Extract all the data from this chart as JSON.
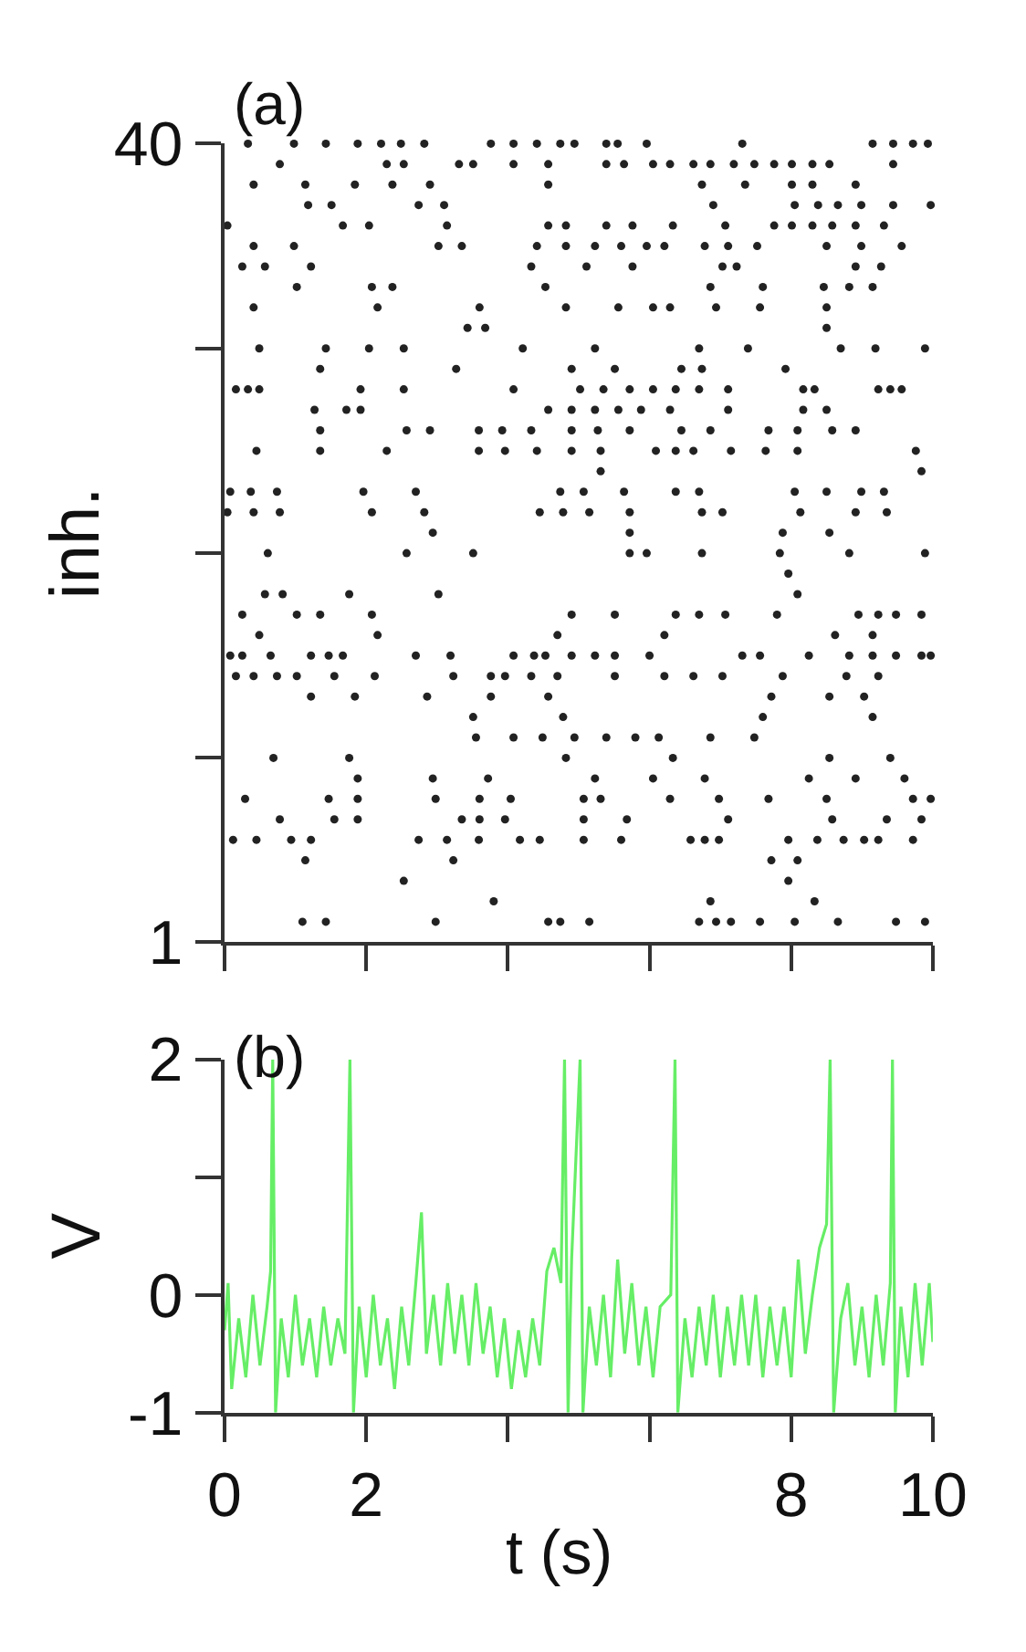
{
  "chart_data": [
    {
      "type": "scatter",
      "title": "(a)",
      "ylabel": "inh.",
      "marker": "circle",
      "tick_labels": "y",
      "xlim": [
        0,
        10
      ],
      "xticks": [
        0,
        2,
        4,
        6,
        8,
        10
      ],
      "ylim": [
        1,
        40
      ],
      "yticks": [
        40,
        {
          "value": 30,
          "label": null
        },
        {
          "value": 20,
          "label": null
        },
        {
          "value": 10,
          "label": null
        },
        1
      ],
      "series": [
        {
          "color": "#222222",
          "x": [
            0.33,
            0.98,
            1.43,
            1.88,
            2.21,
            2.49,
            2.82,
            3.76,
            4.08,
            4.41,
            4.74,
            4.94,
            5.39,
            5.55,
            5.96,
            7.31,
            9.15,
            9.44,
            9.72,
            9.93
          ],
          "values": [
            40,
            40,
            40,
            40,
            40,
            40,
            40,
            40,
            40,
            40,
            40,
            40,
            40,
            40,
            40,
            40,
            40,
            40,
            40,
            40
          ]
        },
        {
          "color": "#222222",
          "x": [
            0.78,
            2.29,
            2.53,
            3.31,
            3.51,
            4.08,
            4.57,
            5.39,
            5.64,
            6.05,
            6.29,
            6.62,
            6.86,
            7.19,
            7.48,
            7.76,
            8.01,
            8.3,
            8.54,
            9.44
          ],
          "values": [
            39,
            39,
            39,
            39,
            39,
            39,
            39,
            39,
            39,
            39,
            39,
            39,
            39,
            39,
            39,
            39,
            39,
            39,
            39,
            39
          ]
        },
        {
          "color": "#222222",
          "x": [
            0.41,
            1.14,
            1.84,
            2.37,
            2.9,
            4.57,
            6.74,
            7.35,
            8.01,
            8.3,
            8.91
          ],
          "values": [
            38,
            38,
            38,
            38,
            38,
            38,
            38,
            38,
            38,
            38,
            38
          ]
        },
        {
          "color": "#222222",
          "x": [
            1.18,
            1.51,
            2.74,
            3.1,
            6.9,
            8.05,
            8.38,
            8.66,
            8.99,
            9.44,
            9.97
          ],
          "values": [
            37,
            37,
            37,
            37,
            37,
            37,
            37,
            37,
            37,
            37,
            37
          ]
        },
        {
          "color": "#222222",
          "x": [
            0.04,
            1.67,
            2.04,
            3.14,
            4.57,
            4.82,
            5.39,
            5.76,
            6.33,
            7.07,
            7.76,
            8.01,
            8.3,
            8.58,
            8.91,
            9.31
          ],
          "values": [
            36,
            36,
            36,
            36,
            36,
            36,
            36,
            36,
            36,
            36,
            36,
            36,
            36,
            36,
            36,
            36
          ]
        },
        {
          "color": "#222222",
          "x": [
            0.41,
            0.98,
            3.02,
            3.35,
            4.41,
            4.82,
            5.23,
            5.6,
            5.96,
            6.21,
            6.78,
            7.11,
            7.52,
            8.5,
            8.99,
            9.56
          ],
          "values": [
            35,
            35,
            35,
            35,
            35,
            35,
            35,
            35,
            35,
            35,
            35,
            35,
            35,
            35,
            35,
            35
          ]
        },
        {
          "color": "#222222",
          "x": [
            0.25,
            0.57,
            1.22,
            4.33,
            5.11,
            5.76,
            7.03,
            7.23,
            8.91,
            9.27
          ],
          "values": [
            34,
            34,
            34,
            34,
            34,
            34,
            34,
            34,
            34,
            34
          ]
        },
        {
          "color": "#222222",
          "x": [
            1.02,
            2.08,
            2.37,
            4.53,
            6.86,
            7.6,
            8.46,
            8.82,
            9.15
          ],
          "values": [
            33,
            33,
            33,
            33,
            33,
            33,
            33,
            33,
            33
          ]
        },
        {
          "color": "#222222",
          "x": [
            0.41,
            2.16,
            3.6,
            4.82,
            5.56,
            6.05,
            6.29,
            6.94,
            7.56,
            8.5
          ],
          "values": [
            32,
            32,
            32,
            32,
            32,
            32,
            32,
            32,
            32,
            32
          ]
        },
        {
          "color": "#222222",
          "x": [
            3.43,
            3.68,
            8.5
          ],
          "values": [
            31,
            31,
            31
          ]
        },
        {
          "color": "#222222",
          "x": [
            0.49,
            1.43,
            2.04,
            2.53,
            4.21,
            5.23,
            6.7,
            7.39,
            8.7,
            9.19,
            9.89
          ],
          "values": [
            30,
            30,
            30,
            30,
            30,
            30,
            30,
            30,
            30,
            30,
            30
          ]
        },
        {
          "color": "#222222",
          "x": [
            1.35,
            3.27,
            4.9,
            5.51,
            6.45,
            6.74,
            7.92
          ],
          "values": [
            29,
            29,
            29,
            29,
            29,
            29,
            29
          ]
        },
        {
          "color": "#222222",
          "x": [
            0.16,
            0.33,
            0.49,
            1.92,
            2.53,
            4.08,
            5.02,
            5.35,
            5.72,
            6.05,
            6.37,
            6.7,
            7.11,
            8.17,
            8.33,
            9.23,
            9.4,
            9.56
          ],
          "values": [
            28,
            28,
            28,
            28,
            28,
            28,
            28,
            28,
            28,
            28,
            28,
            28,
            28,
            28,
            28,
            28,
            28,
            28
          ]
        },
        {
          "color": "#222222",
          "x": [
            1.27,
            1.72,
            1.92,
            4.57,
            4.9,
            5.23,
            5.56,
            5.88,
            6.29,
            7.11,
            8.17,
            8.5
          ],
          "values": [
            27,
            27,
            27,
            27,
            27,
            27,
            27,
            27,
            27,
            27,
            27,
            27
          ]
        },
        {
          "color": "#222222",
          "x": [
            1.35,
            2.57,
            2.9,
            3.59,
            3.92,
            4.33,
            4.9,
            5.27,
            5.72,
            6.45,
            6.86,
            7.68,
            8.09,
            8.58,
            8.91
          ],
          "values": [
            26,
            26,
            26,
            26,
            26,
            26,
            26,
            26,
            26,
            26,
            26,
            26,
            26,
            26,
            26
          ]
        },
        {
          "color": "#222222",
          "x": [
            0.45,
            1.35,
            2.29,
            3.59,
            3.96,
            4.41,
            4.9,
            5.31,
            6.09,
            6.37,
            6.62,
            7.15,
            7.64,
            8.09,
            9.76
          ],
          "values": [
            25,
            25,
            25,
            25,
            25,
            25,
            25,
            25,
            25,
            25,
            25,
            25,
            25,
            25,
            25
          ]
        },
        {
          "color": "#222222",
          "x": [
            5.31,
            9.84
          ],
          "values": [
            24,
            24
          ]
        },
        {
          "color": "#222222",
          "x": [
            0.08,
            0.37,
            0.74,
            1.96,
            2.7,
            4.74,
            5.07,
            5.64,
            6.37,
            6.7,
            8.05,
            8.5,
            8.99,
            9.31
          ],
          "values": [
            23,
            23,
            23,
            23,
            23,
            23,
            23,
            23,
            23,
            23,
            23,
            23,
            23,
            23
          ]
        },
        {
          "color": "#222222",
          "x": [
            0.04,
            0.41,
            0.78,
            2.08,
            2.82,
            4.45,
            4.78,
            5.15,
            5.72,
            6.74,
            7.03,
            8.13,
            8.91,
            9.35
          ],
          "values": [
            22,
            22,
            22,
            22,
            22,
            22,
            22,
            22,
            22,
            22,
            22,
            22,
            22,
            22
          ]
        },
        {
          "color": "#222222",
          "x": [
            2.94,
            5.72,
            7.88,
            8.54
          ],
          "values": [
            21,
            21,
            21,
            21
          ]
        },
        {
          "color": "#222222",
          "x": [
            0.61,
            2.57,
            3.51,
            5.72,
            5.96,
            6.74,
            7.84,
            8.82,
            9.89
          ],
          "values": [
            20,
            20,
            20,
            20,
            20,
            20,
            20,
            20,
            20
          ]
        },
        {
          "color": "#222222",
          "x": [
            7.96
          ],
          "values": [
            19
          ]
        },
        {
          "color": "#222222",
          "x": [
            0.57,
            0.82,
            1.76,
            3.02,
            8.09
          ],
          "values": [
            18,
            18,
            18,
            18,
            18
          ]
        },
        {
          "color": "#222222",
          "x": [
            0.25,
            1.02,
            1.35,
            2.08,
            4.9,
            5.51,
            6.37,
            6.7,
            7.07,
            7.8,
            8.95,
            9.23,
            9.48,
            9.84
          ],
          "values": [
            17,
            17,
            17,
            17,
            17,
            17,
            17,
            17,
            17,
            17,
            17,
            17,
            17,
            17
          ]
        },
        {
          "color": "#222222",
          "x": [
            0.49,
            2.16,
            4.7,
            6.21,
            8.62,
            9.15
          ],
          "values": [
            16,
            16,
            16,
            16,
            16,
            16
          ]
        },
        {
          "color": "#222222",
          "x": [
            0.08,
            0.25,
            0.65,
            1.22,
            1.47,
            1.67,
            2.7,
            3.19,
            4.08,
            4.37,
            4.53,
            4.9,
            5.23,
            5.51,
            6.0,
            7.31,
            7.56,
            8.25,
            8.82,
            9.15,
            9.48,
            9.84,
            9.97
          ],
          "values": [
            15,
            15,
            15,
            15,
            15,
            15,
            15,
            15,
            15,
            15,
            15,
            15,
            15,
            15,
            15,
            15,
            15,
            15,
            15,
            15,
            15,
            15,
            15
          ]
        },
        {
          "color": "#222222",
          "x": [
            0.16,
            0.41,
            0.74,
            1.02,
            1.55,
            2.12,
            3.23,
            3.76,
            3.96,
            4.33,
            4.7,
            5.51,
            6.21,
            6.62,
            7.03,
            7.88,
            8.78,
            9.23
          ],
          "values": [
            14,
            14,
            14,
            14,
            14,
            14,
            14,
            14,
            14,
            14,
            14,
            14,
            14,
            14,
            14,
            14,
            14,
            14
          ]
        },
        {
          "color": "#222222",
          "x": [
            1.22,
            1.84,
            2.86,
            3.76,
            4.57,
            7.72,
            8.54,
            9.03
          ],
          "values": [
            13,
            13,
            13,
            13,
            13,
            13,
            13,
            13
          ]
        },
        {
          "color": "#222222",
          "x": [
            3.51,
            4.78,
            7.6,
            9.15
          ],
          "values": [
            12,
            12,
            12,
            12
          ]
        },
        {
          "color": "#222222",
          "x": [
            3.55,
            4.08,
            4.49,
            4.94,
            5.39,
            5.8,
            6.13,
            6.86,
            7.48
          ],
          "values": [
            11,
            11,
            11,
            11,
            11,
            11,
            11,
            11,
            11
          ]
        },
        {
          "color": "#222222",
          "x": [
            0.69,
            1.76,
            4.82,
            6.33,
            8.54,
            9.4
          ],
          "values": [
            10,
            10,
            10,
            10,
            10,
            10
          ]
        },
        {
          "color": "#222222",
          "x": [
            1.88,
            2.94,
            3.72,
            5.23,
            6.05,
            6.78,
            8.25,
            8.91,
            9.6
          ],
          "values": [
            9,
            9,
            9,
            9,
            9,
            9,
            9,
            9,
            9
          ]
        },
        {
          "color": "#222222",
          "x": [
            0.29,
            1.47,
            1.88,
            2.98,
            3.6,
            4.04,
            5.07,
            5.31,
            6.29,
            6.98,
            7.68,
            8.5,
            9.72,
            9.97
          ],
          "values": [
            8,
            8,
            8,
            8,
            8,
            8,
            8,
            8,
            8,
            8,
            8,
            8,
            8,
            8
          ]
        },
        {
          "color": "#222222",
          "x": [
            0.78,
            1.55,
            1.88,
            3.35,
            3.6,
            3.96,
            5.07,
            5.68,
            7.11,
            8.58,
            9.35,
            9.84
          ],
          "values": [
            7,
            7,
            7,
            7,
            7,
            7,
            7,
            7,
            7,
            7,
            7,
            7
          ]
        },
        {
          "color": "#222222",
          "x": [
            0.12,
            0.45,
            0.94,
            1.22,
            2.74,
            3.14,
            3.59,
            4.17,
            4.45,
            5.07,
            5.6,
            6.58,
            6.78,
            6.98,
            7.96,
            8.37,
            8.74,
            9.03,
            9.23,
            9.72
          ],
          "values": [
            6,
            6,
            6,
            6,
            6,
            6,
            6,
            6,
            6,
            6,
            6,
            6,
            6,
            6,
            6,
            6,
            6,
            6,
            6,
            6
          ]
        },
        {
          "color": "#222222",
          "x": [
            1.14,
            3.23,
            7.72,
            8.09
          ],
          "values": [
            5,
            5,
            5,
            5
          ]
        },
        {
          "color": "#222222",
          "x": [
            2.53,
            7.96
          ],
          "values": [
            4,
            4
          ]
        },
        {
          "color": "#222222",
          "x": [
            3.8,
            6.86,
            8.33
          ],
          "values": [
            3,
            3,
            3
          ]
        },
        {
          "color": "#222222",
          "x": [
            1.1,
            1.43,
            2.98,
            4.57,
            4.74,
            5.15,
            6.7,
            6.94,
            7.15,
            7.56,
            8.05,
            8.66,
            9.48,
            9.89
          ],
          "values": [
            2,
            2,
            2,
            2,
            2,
            2,
            2,
            2,
            2,
            2,
            2,
            2,
            2,
            2
          ]
        }
      ]
    },
    {
      "type": "line",
      "title": "(b)",
      "ylabel": "V",
      "xlabel": "t (s)",
      "marker": "none",
      "line_style": "solid",
      "xlim": [
        0,
        10
      ],
      "xticks": [
        0,
        2,
        {
          "value": 4,
          "label": null
        },
        {
          "value": 6,
          "label": null
        },
        8,
        10
      ],
      "ylim": [
        -1,
        2
      ],
      "yticks": [
        2,
        {
          "value": 1,
          "label": null
        },
        0,
        -1
      ],
      "series": [
        {
          "color": "#66ee66",
          "x": [
            0,
            0.05,
            0.1,
            0.2,
            0.3,
            0.4,
            0.5,
            0.6,
            0.65,
            0.68,
            0.72,
            0.8,
            0.9,
            1.0,
            1.1,
            1.2,
            1.3,
            1.4,
            1.5,
            1.6,
            1.7,
            1.77,
            1.82,
            1.9,
            2.0,
            2.1,
            2.2,
            2.3,
            2.4,
            2.5,
            2.6,
            2.7,
            2.78,
            2.85,
            2.95,
            3.05,
            3.15,
            3.25,
            3.35,
            3.45,
            3.55,
            3.65,
            3.75,
            3.85,
            3.95,
            4.05,
            4.15,
            4.25,
            4.35,
            4.45,
            4.55,
            4.65,
            4.75,
            4.8,
            4.85,
            4.9,
            5.02,
            5.06,
            5.15,
            5.25,
            5.35,
            5.45,
            5.55,
            5.65,
            5.75,
            5.85,
            5.95,
            6.05,
            6.15,
            6.3,
            6.36,
            6.4,
            6.5,
            6.6,
            6.7,
            6.8,
            6.9,
            7.0,
            7.1,
            7.2,
            7.3,
            7.4,
            7.5,
            7.6,
            7.7,
            7.8,
            7.9,
            8.0,
            8.1,
            8.2,
            8.3,
            8.4,
            8.5,
            8.55,
            8.6,
            8.7,
            8.8,
            8.9,
            9.0,
            9.1,
            9.2,
            9.3,
            9.4,
            9.43,
            9.47,
            9.55,
            9.65,
            9.75,
            9.85,
            9.95,
            10.0
          ],
          "values": [
            -0.3,
            0.1,
            -0.8,
            -0.2,
            -0.7,
            0.0,
            -0.6,
            -0.1,
            0.2,
            2.0,
            -1.0,
            -0.2,
            -0.7,
            0.0,
            -0.6,
            -0.2,
            -0.7,
            -0.1,
            -0.6,
            -0.2,
            -0.5,
            2.0,
            -1.0,
            -0.1,
            -0.7,
            0.0,
            -0.6,
            -0.2,
            -0.8,
            -0.1,
            -0.6,
            0.1,
            0.7,
            -0.5,
            0.0,
            -0.6,
            0.1,
            -0.5,
            0.0,
            -0.6,
            0.1,
            -0.5,
            -0.1,
            -0.7,
            -0.2,
            -0.8,
            -0.3,
            -0.7,
            -0.2,
            -0.6,
            0.2,
            0.4,
            0.1,
            2.0,
            -1.0,
            0.3,
            2.0,
            -1.0,
            -0.1,
            -0.6,
            0.0,
            -0.7,
            0.3,
            -0.5,
            0.1,
            -0.6,
            -0.1,
            -0.7,
            -0.1,
            0.0,
            2.0,
            -1.0,
            -0.2,
            -0.7,
            -0.1,
            -0.6,
            0.0,
            -0.7,
            -0.1,
            -0.6,
            0.0,
            -0.6,
            0.0,
            -0.7,
            -0.1,
            -0.6,
            -0.1,
            -0.7,
            0.3,
            -0.5,
            0.0,
            0.4,
            0.6,
            2.0,
            -1.0,
            -0.2,
            0.1,
            -0.6,
            -0.1,
            -0.7,
            0.0,
            -0.6,
            0.1,
            2.0,
            -1.0,
            -0.1,
            -0.7,
            0.1,
            -0.6,
            0.1,
            -0.4
          ]
        }
      ]
    }
  ]
}
